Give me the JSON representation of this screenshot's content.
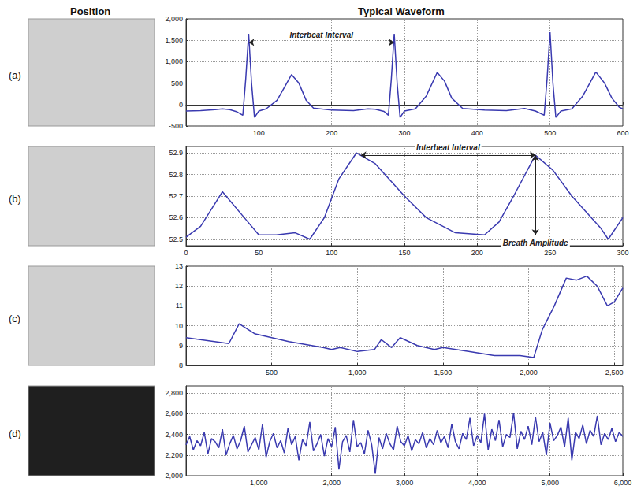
{
  "headers": [
    "Position",
    "Typical Waveform"
  ],
  "chart_data": [
    {
      "type": "line",
      "title": "(a)",
      "color": "#3a3ab0",
      "grid": true,
      "x": [
        0,
        20,
        40,
        50,
        60,
        70,
        78,
        82,
        86,
        90,
        94,
        100,
        110,
        125,
        135,
        145,
        155,
        165,
        175,
        200,
        230,
        250,
        260,
        272,
        278,
        282,
        286,
        290,
        294,
        300,
        315,
        330,
        345,
        355,
        365,
        380,
        410,
        440,
        465,
        480,
        492,
        496,
        500,
        504,
        508,
        515,
        530,
        545,
        563,
        575,
        585,
        595,
        600
      ],
      "values": [
        -150,
        -140,
        -120,
        -100,
        -120,
        -170,
        -250,
        600,
        1650,
        500,
        -300,
        -150,
        -100,
        100,
        400,
        700,
        500,
        100,
        -80,
        -130,
        -140,
        -100,
        -110,
        -160,
        -250,
        600,
        1650,
        500,
        -300,
        -150,
        -100,
        200,
        750,
        550,
        150,
        -90,
        -130,
        -140,
        -90,
        -150,
        -250,
        600,
        1700,
        500,
        -300,
        -150,
        -100,
        200,
        760,
        500,
        150,
        -60,
        -100
      ],
      "xlim": [
        0,
        600
      ],
      "xticks": [
        100,
        200,
        300,
        400,
        500,
        600
      ],
      "ylim": [
        -500,
        2000
      ],
      "yticks": [
        -500,
        0,
        500,
        1000,
        1500,
        2000
      ],
      "annotations": [
        {
          "text": "Interbeat Interval",
          "x": [
            86,
            286
          ],
          "y": 1450
        }
      ]
    },
    {
      "type": "line",
      "title": "(b)",
      "color": "#3a3ab0",
      "grid": true,
      "x": [
        0,
        10,
        25,
        40,
        50,
        62,
        75,
        85,
        95,
        105,
        117,
        130,
        150,
        165,
        185,
        205,
        215,
        225,
        240,
        252,
        265,
        285,
        290,
        300
      ],
      "values": [
        52.51,
        52.56,
        52.72,
        52.6,
        52.52,
        52.52,
        52.53,
        52.5,
        52.6,
        52.78,
        52.9,
        52.85,
        52.7,
        52.6,
        52.53,
        52.52,
        52.58,
        52.7,
        52.89,
        52.82,
        52.7,
        52.55,
        52.5,
        52.6
      ],
      "xlim": [
        0,
        300
      ],
      "xticks": [
        0,
        50,
        100,
        150,
        200,
        250,
        300
      ],
      "ylim": [
        52.47,
        52.93
      ],
      "yticks": [
        52.5,
        52.6,
        52.7,
        52.8,
        52.9
      ],
      "annotations": [
        {
          "text": "Interbeat Interval",
          "x": [
            120,
            240
          ],
          "y": 52.89
        },
        {
          "text": "Breath Amplitude",
          "x": 240,
          "y": [
            52.89,
            52.52
          ]
        }
      ]
    },
    {
      "type": "line",
      "title": "(c)",
      "color": "#3a3ab0",
      "grid": true,
      "x": [
        0,
        250,
        310,
        400,
        600,
        800,
        850,
        900,
        1000,
        1100,
        1140,
        1200,
        1250,
        1350,
        1450,
        1500,
        1650,
        1800,
        1950,
        2030,
        2080,
        2150,
        2220,
        2280,
        2340,
        2400,
        2460,
        2500,
        2550
      ],
      "values": [
        9.4,
        9.1,
        10.1,
        9.6,
        9.2,
        8.9,
        8.8,
        8.9,
        8.7,
        8.8,
        9.3,
        8.9,
        9.4,
        9.0,
        8.8,
        8.9,
        8.7,
        8.5,
        8.5,
        8.4,
        9.8,
        11.0,
        12.4,
        12.3,
        12.5,
        12.0,
        11.0,
        11.2,
        11.9
      ],
      "xlim": [
        0,
        2550
      ],
      "xticks": [
        500,
        1000,
        1500,
        2000,
        2500
      ],
      "ylim": [
        8,
        13
      ],
      "yticks": [
        8,
        9,
        10,
        11,
        12,
        13
      ]
    },
    {
      "type": "line",
      "title": "(d)",
      "color": "#3a3ab0",
      "grid": true,
      "x": [
        0,
        50,
        100,
        150,
        200,
        250,
        300,
        350,
        400,
        450,
        500,
        550,
        600,
        650,
        700,
        750,
        800,
        850,
        900,
        950,
        1000,
        1050,
        1100,
        1150,
        1200,
        1250,
        1300,
        1350,
        1400,
        1450,
        1500,
        1550,
        1600,
        1650,
        1700,
        1750,
        1800,
        1850,
        1900,
        1950,
        2000,
        2050,
        2100,
        2150,
        2200,
        2250,
        2300,
        2350,
        2400,
        2450,
        2500,
        2550,
        2600,
        2650,
        2700,
        2750,
        2800,
        2850,
        2900,
        2950,
        3000,
        3050,
        3100,
        3150,
        3200,
        3250,
        3300,
        3350,
        3400,
        3450,
        3500,
        3550,
        3600,
        3650,
        3700,
        3750,
        3800,
        3850,
        3900,
        3950,
        4000,
        4050,
        4100,
        4150,
        4200,
        4250,
        4300,
        4350,
        4400,
        4450,
        4500,
        4550,
        4600,
        4650,
        4700,
        4750,
        4800,
        4850,
        4900,
        4950,
        5000,
        5050,
        5100,
        5150,
        5200,
        5250,
        5300,
        5350,
        5400,
        5450,
        5500,
        5550,
        5600,
        5650,
        5700,
        5750,
        5800,
        5850,
        5900,
        5950,
        6000
      ],
      "values": [
        2300,
        2380,
        2250,
        2340,
        2290,
        2420,
        2210,
        2360,
        2330,
        2270,
        2450,
        2200,
        2310,
        2390,
        2260,
        2340,
        2480,
        2230,
        2300,
        2370,
        2250,
        2500,
        2180,
        2330,
        2410,
        2270,
        2340,
        2220,
        2460,
        2300,
        2380,
        2150,
        2350,
        2290,
        2520,
        2240,
        2310,
        2400,
        2190,
        2360,
        2280,
        2470,
        2060,
        2330,
        2390,
        2230,
        2540,
        2280,
        2320,
        2210,
        2440,
        2300,
        2020,
        2370,
        2260,
        2410,
        2310,
        2250,
        2480,
        2330,
        2290,
        2390,
        2240,
        2350,
        2310,
        2420,
        2270,
        2360,
        2300,
        2440,
        2320,
        2380,
        2270,
        2500,
        2330,
        2260,
        2410,
        2350,
        2560,
        2290,
        2390,
        2320,
        2600,
        2250,
        2450,
        2340,
        2540,
        2280,
        2400,
        2370,
        2610,
        2260,
        2430,
        2350,
        2480,
        2300,
        2570,
        2330,
        2420,
        2200,
        2510,
        2340,
        2390,
        2470,
        2280,
        2560,
        2150,
        2420,
        2360,
        2490,
        2310,
        2440,
        2380,
        2580,
        2300,
        2410,
        2350,
        2460,
        2330,
        2420,
        2380
      ],
      "xlim": [
        0,
        6000
      ],
      "xticks": [
        1000,
        2000,
        3000,
        4000,
        5000,
        6000
      ],
      "ylim": [
        2000,
        2870
      ],
      "yticks": [
        2000,
        2200,
        2400,
        2600,
        2800
      ]
    }
  ]
}
